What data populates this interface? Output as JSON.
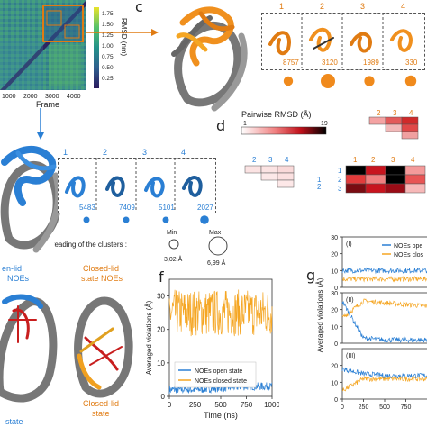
{
  "panel_letters": {
    "c": "c",
    "d": "d",
    "f": "f",
    "g": "g"
  },
  "heatmap_panel": {
    "colorbar_ticks": [
      "1.75",
      "1.50",
      "1.25",
      "1.00",
      "0.75",
      "0.50",
      "0.25"
    ],
    "colorbar_label": "RMSD (nm)",
    "x_ticks": [
      "1000",
      "2000",
      "3000",
      "4000"
    ],
    "x_label": "Frame"
  },
  "panel_c": {
    "cluster_ids": [
      "1",
      "2",
      "3",
      "4"
    ],
    "cluster_counts": [
      "8757",
      "3120",
      "1989",
      "330"
    ],
    "dot_sizes": [
      0.65,
      1.0,
      0.7,
      0.78
    ]
  },
  "panel_b": {
    "cluster_ids": [
      "1",
      "2",
      "3",
      "4"
    ],
    "cluster_counts": [
      "5483",
      "7409",
      "5101",
      "2027"
    ],
    "dot_sizes": [
      0.7,
      0.7,
      0.7,
      0.95
    ],
    "spreading_label": "Spreading of the clusters :",
    "min_label": "Min",
    "min_value": "3,02 Å",
    "max_label": "Max",
    "max_value": "6,99 Å"
  },
  "panel_d": {
    "legend_title": "Pairwise RMSD (Å)",
    "legend_min": "1",
    "legend_max": "19",
    "blue_ids": [
      "2",
      "3",
      "4"
    ],
    "blue_row_ids": [
      "1",
      "2",
      "3"
    ],
    "orange_ids": [
      "2",
      "3",
      "4"
    ],
    "orange_col_ids": [
      "1",
      "2",
      "3",
      "4"
    ],
    "orange_row_ids": [
      "1",
      "2",
      "3"
    ]
  },
  "panel_e": {
    "open_label_line1": "en-lid",
    "open_label_line2": "NOEs",
    "closed_label_line1": "Closed-lid",
    "closed_label_line2": "state NOEs",
    "closed_bottom_line1": "Closed-lid",
    "closed_bottom_line2": "state",
    "open_bottom": "state"
  },
  "chart_data": [
    {
      "type": "line",
      "panel": "f",
      "xlabel": "Time (ns)",
      "ylabel": "Averaged violations (Å)",
      "xlim": [
        0,
        1000
      ],
      "ylim": [
        0,
        35
      ],
      "x_ticks": [
        0,
        250,
        500,
        750,
        1000
      ],
      "y_ticks": [
        0,
        10,
        20,
        30
      ],
      "series": [
        {
          "name": "NOEs open state",
          "color": "#2a7fd4",
          "mean": [
            2,
            2,
            2.5,
            3,
            3
          ]
        },
        {
          "name": "NOEs closed state",
          "color": "#f5a623",
          "mean": [
            25,
            25,
            25,
            25,
            25
          ]
        }
      ]
    },
    {
      "type": "line",
      "panel": "g",
      "ylabel": "Averaged violations (Å)",
      "xlabel": "",
      "xlim": [
        0,
        1000
      ],
      "x_ticks": [
        0,
        250,
        500,
        750,
        1000
      ],
      "subplots": [
        {
          "label": "(I)",
          "ylim": [
            0,
            30
          ],
          "y_ticks": [
            0,
            10,
            20,
            30
          ],
          "legend": [
            "NOEs ope",
            "NOEs clos"
          ],
          "open_mean": [
            10,
            10,
            10,
            10,
            10
          ],
          "closed_mean": [
            5,
            5,
            5,
            5,
            5
          ]
        },
        {
          "label": "(II)",
          "ylim": [
            0,
            30
          ],
          "y_ticks": [
            0,
            10,
            20,
            30
          ],
          "open_mean": [
            25,
            3,
            2,
            2,
            2
          ],
          "closed_mean": [
            15,
            25,
            24,
            23,
            22
          ]
        },
        {
          "label": "(III)",
          "ylim": [
            0,
            30
          ],
          "y_ticks": [
            0,
            10,
            20
          ],
          "open_mean": [
            18,
            15,
            14,
            14,
            14
          ],
          "closed_mean": [
            5,
            12,
            12,
            12,
            12
          ]
        }
      ],
      "x_tick_labels": [
        "0",
        "250",
        "500",
        "750"
      ]
    }
  ]
}
